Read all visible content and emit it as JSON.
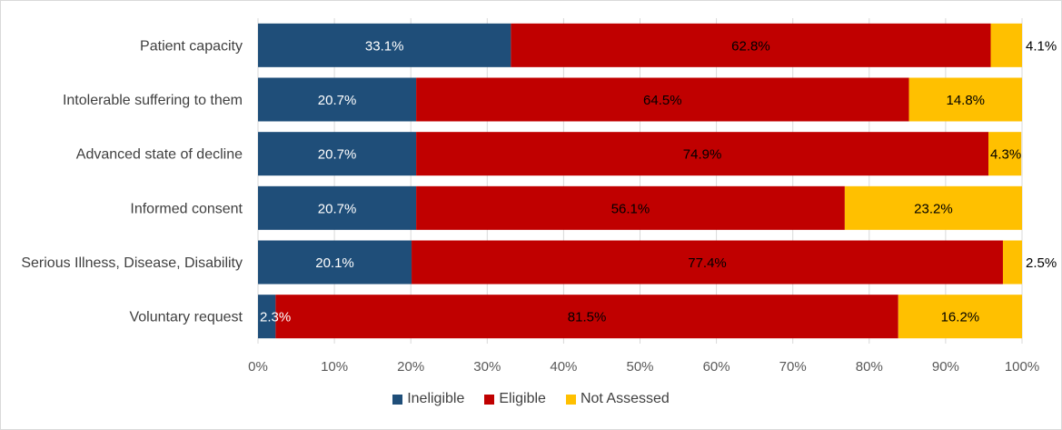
{
  "chart_data": {
    "type": "bar",
    "orientation": "horizontal",
    "stacked": "percent",
    "title": "",
    "xlabel": "",
    "ylabel": "",
    "xlim": [
      0,
      100
    ],
    "x_ticks": [
      "0%",
      "10%",
      "20%",
      "30%",
      "40%",
      "50%",
      "60%",
      "70%",
      "80%",
      "90%",
      "100%"
    ],
    "grid": true,
    "legend_position": "bottom",
    "categories": [
      "Patient capacity",
      "Intolerable suffering to them",
      "Advanced state of decline",
      "Informed consent",
      "Serious Illness, Disease, Disability",
      "Voluntary request"
    ],
    "series": [
      {
        "name": "Ineligible",
        "color": "#1f4e79",
        "label_color": "#ffffff",
        "values": [
          33.1,
          20.7,
          20.7,
          20.7,
          20.1,
          2.3
        ],
        "labels": [
          "33.1%",
          "20.7%",
          "20.7%",
          "20.7%",
          "20.1%",
          "2.3%"
        ]
      },
      {
        "name": "Eligible",
        "color": "#c00000",
        "label_color": "#000000",
        "values": [
          62.8,
          64.5,
          74.9,
          56.1,
          77.4,
          81.5
        ],
        "labels": [
          "62.8%",
          "64.5%",
          "74.9%",
          "56.1%",
          "77.4%",
          "81.5%"
        ]
      },
      {
        "name": "Not Assessed",
        "color": "#ffc000",
        "label_color": "#000000",
        "values": [
          4.1,
          14.8,
          4.3,
          23.2,
          2.5,
          16.2
        ],
        "labels": [
          "4.1%",
          "14.8%",
          "4.3%",
          "23.2%",
          "2.5%",
          "16.2%"
        ]
      }
    ]
  }
}
